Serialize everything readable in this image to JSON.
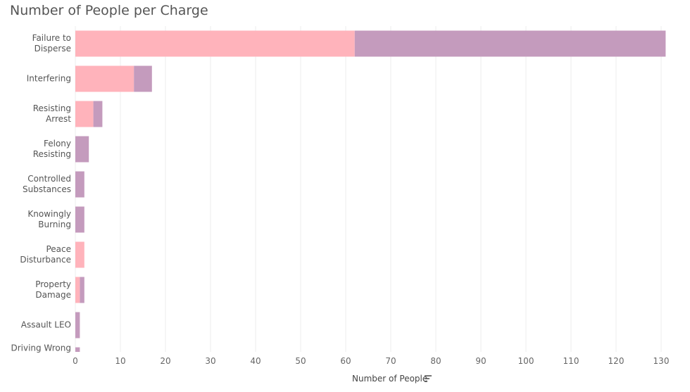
{
  "chart_data": {
    "type": "stacked-barh",
    "title": "Number of People per Charge",
    "categories": [
      "Failure to\nDisperse",
      "Interfering",
      "Resisting\nArrest",
      "Felony\nResisting",
      "Controlled\nSubstances",
      "Knowingly\nBurning",
      "Peace\nDisturbance",
      "Property\nDamage",
      "Assault LEO",
      "Driving Wrong"
    ],
    "series": [
      {
        "color": "#ffb3bb",
        "values": [
          62,
          13,
          4,
          0,
          0,
          0,
          2,
          1,
          0,
          0
        ]
      },
      {
        "color": "#c49bbd",
        "values": [
          69,
          4,
          2,
          3,
          2,
          2,
          0,
          1,
          1,
          1
        ]
      }
    ],
    "xlabel": "Number of People",
    "xlim": [
      0,
      130
    ],
    "xticks": [
      0,
      10,
      20,
      30,
      40,
      50,
      60,
      70,
      80,
      90,
      100,
      110,
      120,
      130
    ],
    "grid": true
  }
}
